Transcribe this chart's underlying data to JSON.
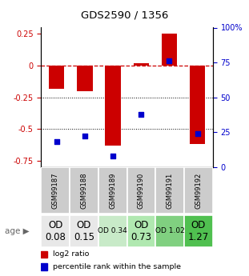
{
  "title": "GDS2590 / 1356",
  "samples": [
    "GSM99187",
    "GSM99188",
    "GSM99189",
    "GSM99190",
    "GSM99191",
    "GSM99192"
  ],
  "log2_ratio": [
    -0.18,
    -0.2,
    -0.63,
    0.02,
    0.25,
    -0.62
  ],
  "percentile_rank": [
    18,
    22,
    8,
    38,
    76,
    24
  ],
  "age_labels": [
    "OD\n0.08",
    "OD\n0.15",
    "OD 0.34",
    "OD\n0.73",
    "OD 1.02",
    "OD\n1.27"
  ],
  "age_fontsize": [
    8.5,
    8.5,
    6.5,
    8.5,
    6.5,
    8.5
  ],
  "age_bg_colors": [
    "#e8e8e8",
    "#e8e8e8",
    "#c8eac8",
    "#b0e8b0",
    "#80d080",
    "#50c050"
  ],
  "sample_bg_color": "#cccccc",
  "ylim": [
    -0.8,
    0.3
  ],
  "yticks_left": [
    0.25,
    0.0,
    -0.25,
    -0.5,
    -0.75
  ],
  "yticks_right": [
    100,
    75,
    50,
    25,
    0
  ],
  "bar_color": "#cc0000",
  "dot_color": "#0000cc",
  "zero_line_color": "#cc0000",
  "grid_color": "#000000",
  "left_tick_color": "#cc0000",
  "right_tick_color": "#0000cc"
}
